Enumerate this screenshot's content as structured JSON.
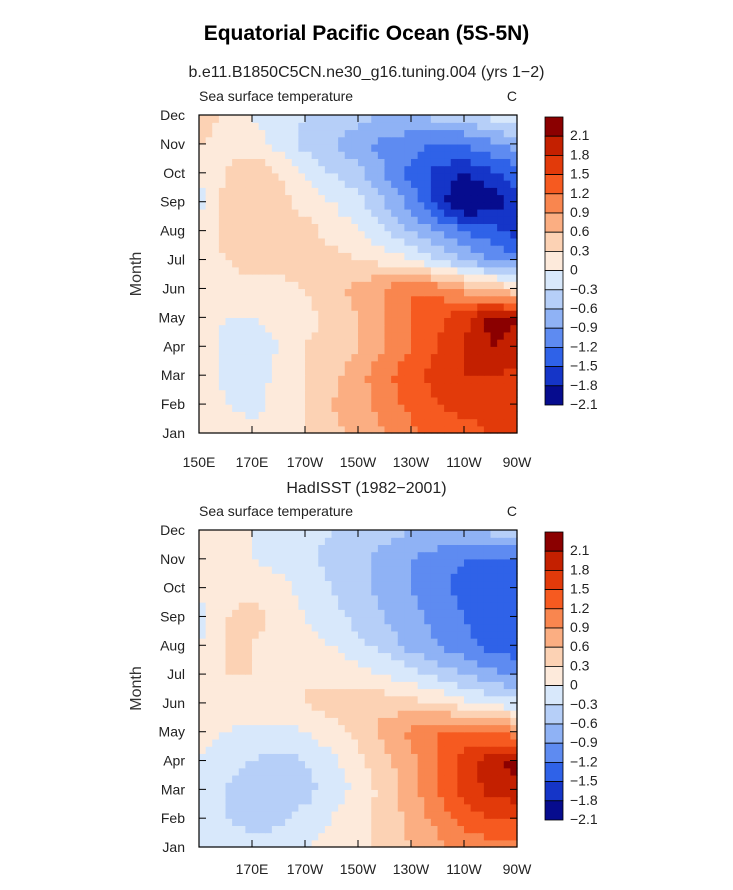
{
  "figure_title": "Equatorial Pacific Ocean (5S-5N)",
  "colorbar": {
    "levels": [
      "2.1",
      "1.8",
      "1.5",
      "1.2",
      "0.9",
      "0.6",
      "0.3",
      "0",
      "−0.3",
      "−0.6",
      "−0.9",
      "−1.2",
      "−1.5",
      "−1.8",
      "−2.1"
    ],
    "colors": [
      "#8b0000",
      "#c42000",
      "#e23a0a",
      "#f65a20",
      "#f9864f",
      "#fbae82",
      "#fcd2b4",
      "#fdeadb",
      "#d8e8fb",
      "#b6cff8",
      "#8fb2f5",
      "#5e8bf1",
      "#2f62e8",
      "#1535c8",
      "#060c8e"
    ]
  },
  "chart_data": [
    {
      "type": "heatmap",
      "title": "b.e11.B1850C5CN.ne30_g16.tuning.004 (yrs 1−2)",
      "left_label": "Sea surface temperature",
      "right_label": "C",
      "ylabel": "Month",
      "xlabel": "",
      "x_ticks": [
        "150E",
        "170E",
        "170W",
        "150W",
        "130W",
        "110W",
        "90W"
      ],
      "y_ticks": [
        "Jan",
        "Feb",
        "Mar",
        "Apr",
        "May",
        "Jun",
        "Jul",
        "Aug",
        "Sep",
        "Oct",
        "Nov",
        "Dec"
      ],
      "units": "C",
      "x": [
        150,
        160,
        170,
        180,
        190,
        200,
        210,
        220,
        230,
        240,
        250,
        260,
        270
      ],
      "months": [
        "Jan",
        "Feb",
        "Mar",
        "Apr",
        "May",
        "Jun",
        "Jul",
        "Aug",
        "Sep",
        "Oct",
        "Nov",
        "Dec"
      ],
      "values": [
        [
          0.3,
          0.15,
          0.1,
          0.15,
          0.3,
          0.5,
          0.7,
          0.9,
          1.1,
          1.3,
          1.4,
          1.5,
          1.5
        ],
        [
          0.3,
          0.0,
          -0.1,
          0.1,
          0.3,
          0.6,
          0.8,
          1.0,
          1.3,
          1.5,
          1.6,
          1.6,
          1.6
        ],
        [
          0.3,
          -0.1,
          -0.2,
          0.1,
          0.3,
          0.5,
          0.8,
          1.1,
          1.4,
          1.6,
          1.8,
          1.8,
          1.7
        ],
        [
          0.2,
          -0.1,
          -0.2,
          0.0,
          0.3,
          0.4,
          0.6,
          0.9,
          1.2,
          1.5,
          1.8,
          2.1,
          2.0
        ],
        [
          0.1,
          0.0,
          0.0,
          0.1,
          0.2,
          0.4,
          0.6,
          0.9,
          1.2,
          1.4,
          1.7,
          2.2,
          2.1
        ],
        [
          0.3,
          0.2,
          0.2,
          0.2,
          0.3,
          0.5,
          0.7,
          0.9,
          1.2,
          1.1,
          0.8,
          0.6,
          0.3
        ],
        [
          0.2,
          0.3,
          0.4,
          0.4,
          0.5,
          0.4,
          0.3,
          0.2,
          0.0,
          -0.3,
          -0.6,
          -0.9,
          -1.1
        ],
        [
          0.1,
          0.4,
          0.5,
          0.5,
          0.4,
          0.2,
          0.0,
          -0.3,
          -0.6,
          -0.9,
          -1.2,
          -1.4,
          -1.6
        ],
        [
          -0.1,
          0.4,
          0.6,
          0.4,
          0.2,
          0.0,
          -0.2,
          -0.6,
          -1.0,
          -1.6,
          -2.2,
          -2.0,
          -1.6
        ],
        [
          0.0,
          0.3,
          0.6,
          0.3,
          0.0,
          -0.3,
          -0.5,
          -0.9,
          -1.3,
          -1.6,
          -1.8,
          -1.6,
          -1.3
        ],
        [
          0.3,
          0.2,
          0.1,
          -0.1,
          -0.4,
          -0.6,
          -0.8,
          -1.0,
          -1.1,
          -1.2,
          -1.2,
          -1.0,
          -0.8
        ],
        [
          0.5,
          0.2,
          0.0,
          -0.1,
          -0.3,
          -0.4,
          -0.5,
          -0.6,
          -0.6,
          -0.5,
          -0.4,
          -0.2,
          0.0
        ]
      ]
    },
    {
      "type": "heatmap",
      "title": "HadISST (1982−2001)",
      "left_label": "Sea surface temperature",
      "right_label": "C",
      "ylabel": "Month",
      "xlabel": "",
      "x_ticks": [
        "",
        "170E",
        "170W",
        "150W",
        "130W",
        "110W",
        "90W"
      ],
      "y_ticks": [
        "Jan",
        "Feb",
        "Mar",
        "Apr",
        "May",
        "Jun",
        "Jul",
        "Aug",
        "Sep",
        "Oct",
        "Nov",
        "Dec"
      ],
      "units": "C",
      "x": [
        150,
        160,
        170,
        180,
        190,
        200,
        210,
        220,
        230,
        240,
        250,
        260,
        270
      ],
      "months": [
        "Jan",
        "Feb",
        "Mar",
        "Apr",
        "May",
        "Jun",
        "Jul",
        "Aug",
        "Sep",
        "Oct",
        "Nov",
        "Dec"
      ],
      "values": [
        [
          0.0,
          -0.1,
          -0.2,
          -0.1,
          0.0,
          0.1,
          0.2,
          0.4,
          0.6,
          0.8,
          1.0,
          1.1,
          1.1
        ],
        [
          -0.1,
          -0.3,
          -0.4,
          -0.4,
          -0.2,
          0.0,
          0.2,
          0.4,
          0.7,
          1.0,
          1.3,
          1.5,
          1.5
        ],
        [
          -0.1,
          -0.3,
          -0.5,
          -0.5,
          -0.4,
          -0.2,
          0.1,
          0.4,
          0.8,
          1.2,
          1.6,
          1.9,
          2.0
        ],
        [
          0.0,
          -0.2,
          -0.3,
          -0.4,
          -0.3,
          -0.1,
          0.2,
          0.5,
          0.8,
          1.2,
          1.6,
          2.0,
          2.2
        ],
        [
          0.1,
          0.0,
          -0.1,
          -0.1,
          0.0,
          0.2,
          0.4,
          0.7,
          1.0,
          1.2,
          1.3,
          1.2,
          1.0
        ],
        [
          0.2,
          0.2,
          0.2,
          0.2,
          0.3,
          0.4,
          0.5,
          0.5,
          0.4,
          0.3,
          0.1,
          -0.1,
          -0.2
        ],
        [
          0.3,
          0.3,
          0.3,
          0.3,
          0.3,
          0.2,
          0.1,
          0.0,
          -0.2,
          -0.4,
          -0.6,
          -0.8,
          -1.0
        ],
        [
          0.0,
          0.3,
          0.3,
          0.2,
          0.1,
          0.0,
          -0.2,
          -0.4,
          -0.7,
          -0.9,
          -1.1,
          -1.3,
          -1.4
        ],
        [
          -0.2,
          0.3,
          0.4,
          0.2,
          0.0,
          -0.2,
          -0.4,
          -0.6,
          -0.8,
          -1.0,
          -1.2,
          -1.4,
          -1.5
        ],
        [
          0.2,
          0.2,
          0.2,
          0.1,
          -0.1,
          -0.3,
          -0.5,
          -0.7,
          -0.9,
          -1.1,
          -1.3,
          -1.5,
          -1.4
        ],
        [
          0.2,
          0.1,
          0.0,
          -0.1,
          -0.2,
          -0.4,
          -0.5,
          -0.7,
          -0.9,
          -1.1,
          -1.2,
          -1.3,
          -1.2
        ],
        [
          0.1,
          0.1,
          0.0,
          -0.1,
          -0.2,
          -0.3,
          -0.4,
          -0.5,
          -0.6,
          -0.6,
          -0.6,
          -0.5,
          -0.4
        ]
      ]
    }
  ]
}
